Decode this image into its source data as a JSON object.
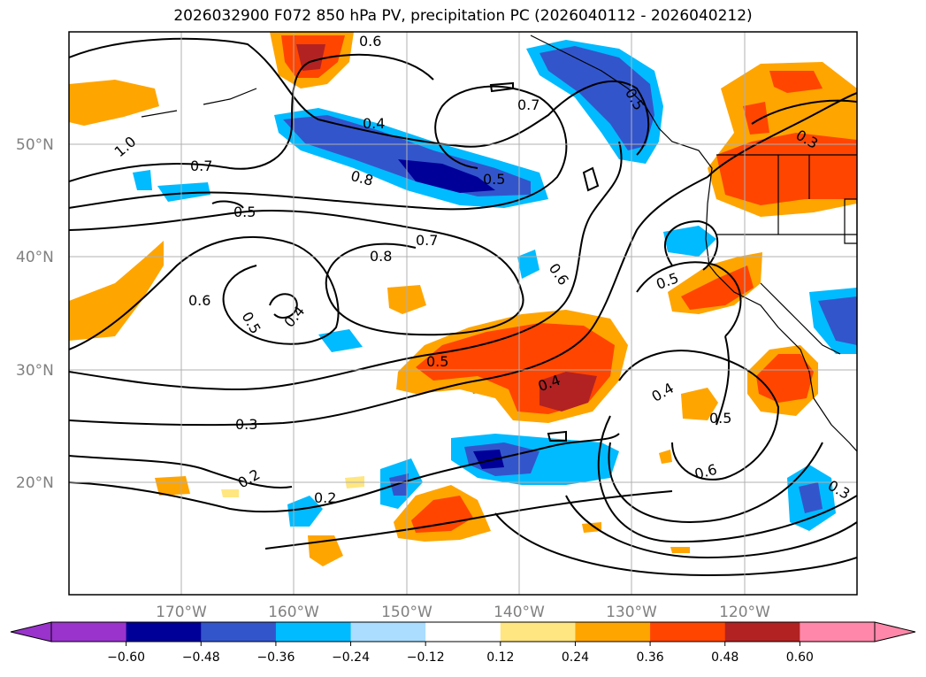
{
  "title": "2026032900 F072 850 hPa PV, precipitation PC (2026040112 - 2026040212)",
  "latitude_labels": [
    "50°N",
    "40°N",
    "30°N",
    "20°N"
  ],
  "longitude_labels": [
    "170°W",
    "160°W",
    "150°W",
    "140°W",
    "130°W",
    "120°W"
  ],
  "colorbar": {
    "colors": [
      "#9933cc",
      "#000099",
      "#3355cc",
      "#00bbff",
      "#aaddff",
      "#ffffff",
      "#ffe680",
      "#ffa500",
      "#ff4500",
      "#b22222",
      "#ff88aa"
    ],
    "tick_labels": [
      "−0.60",
      "−0.48",
      "−0.36",
      "−0.24",
      "−0.12",
      "0.12",
      "0.24",
      "0.36",
      "0.48",
      "0.60"
    ]
  },
  "contour_labels": [
    "0.6",
    "0.4",
    "0.7",
    "1.0",
    "0.7",
    "0.8",
    "0.5",
    "0.5",
    "0.7",
    "0.8",
    "0.6",
    "0.6",
    "0.5",
    "0.4",
    "0.5",
    "0.4",
    "0.3",
    "0.2",
    "0.2",
    "0.4",
    "0.5",
    "0.6",
    "0.5",
    "0.3",
    "0.3",
    "0.5"
  ],
  "colors": {
    "grid": "#b0b0b0",
    "axis_label": "#808080"
  }
}
